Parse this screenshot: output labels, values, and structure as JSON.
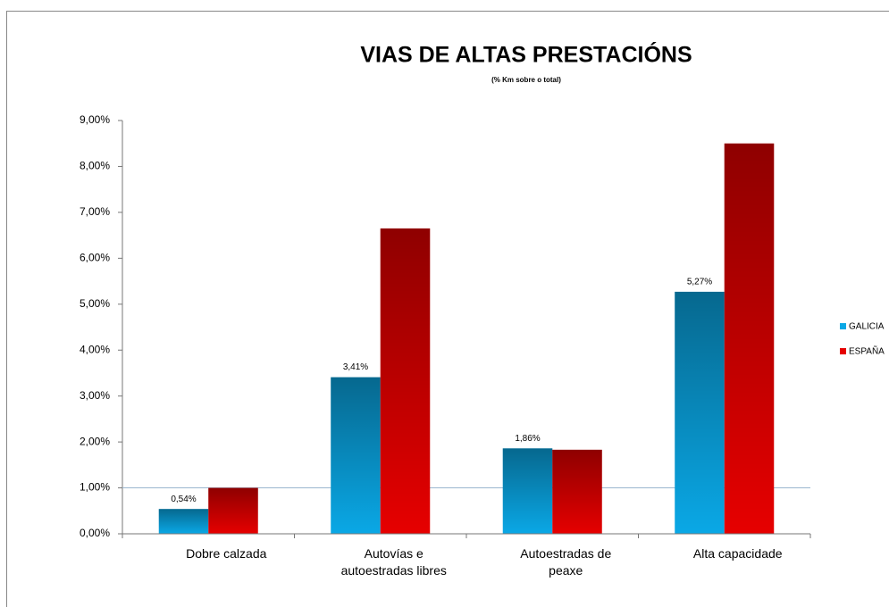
{
  "chart_data": {
    "type": "bar",
    "title": "VIAS DE ALTAS PRESTACIÓNS",
    "subtitle": "(% Km sobre o total)",
    "categories": [
      "Dobre calzada",
      "Autovías e autoestradas libres",
      "Autoestradas de peaxe",
      "Alta capacidade"
    ],
    "series": [
      {
        "name": "GALICIA",
        "color": "#0aa8e6",
        "values": [
          0.54,
          3.41,
          1.86,
          5.27
        ],
        "value_labels": [
          "0,54%",
          "3,41%",
          "1,86%",
          "5,27%"
        ]
      },
      {
        "name": "ESPAÑA",
        "color": "#e60000",
        "values": [
          1.0,
          6.65,
          1.83,
          8.5
        ]
      }
    ],
    "ylim": [
      0,
      9
    ],
    "yticks": [
      {
        "value": 0,
        "label": "0,00%"
      },
      {
        "value": 1,
        "label": "1,00%"
      },
      {
        "value": 2,
        "label": "2,00%"
      },
      {
        "value": 3,
        "label": "3,00%"
      },
      {
        "value": 4,
        "label": "4,00%"
      },
      {
        "value": 5,
        "label": "5,00%"
      },
      {
        "value": 6,
        "label": "6,00%"
      },
      {
        "value": 7,
        "label": "7,00%"
      },
      {
        "value": 8,
        "label": "8,00%"
      },
      {
        "value": 9,
        "label": "9,00%"
      }
    ],
    "reference_line": 1,
    "legend": "right"
  }
}
